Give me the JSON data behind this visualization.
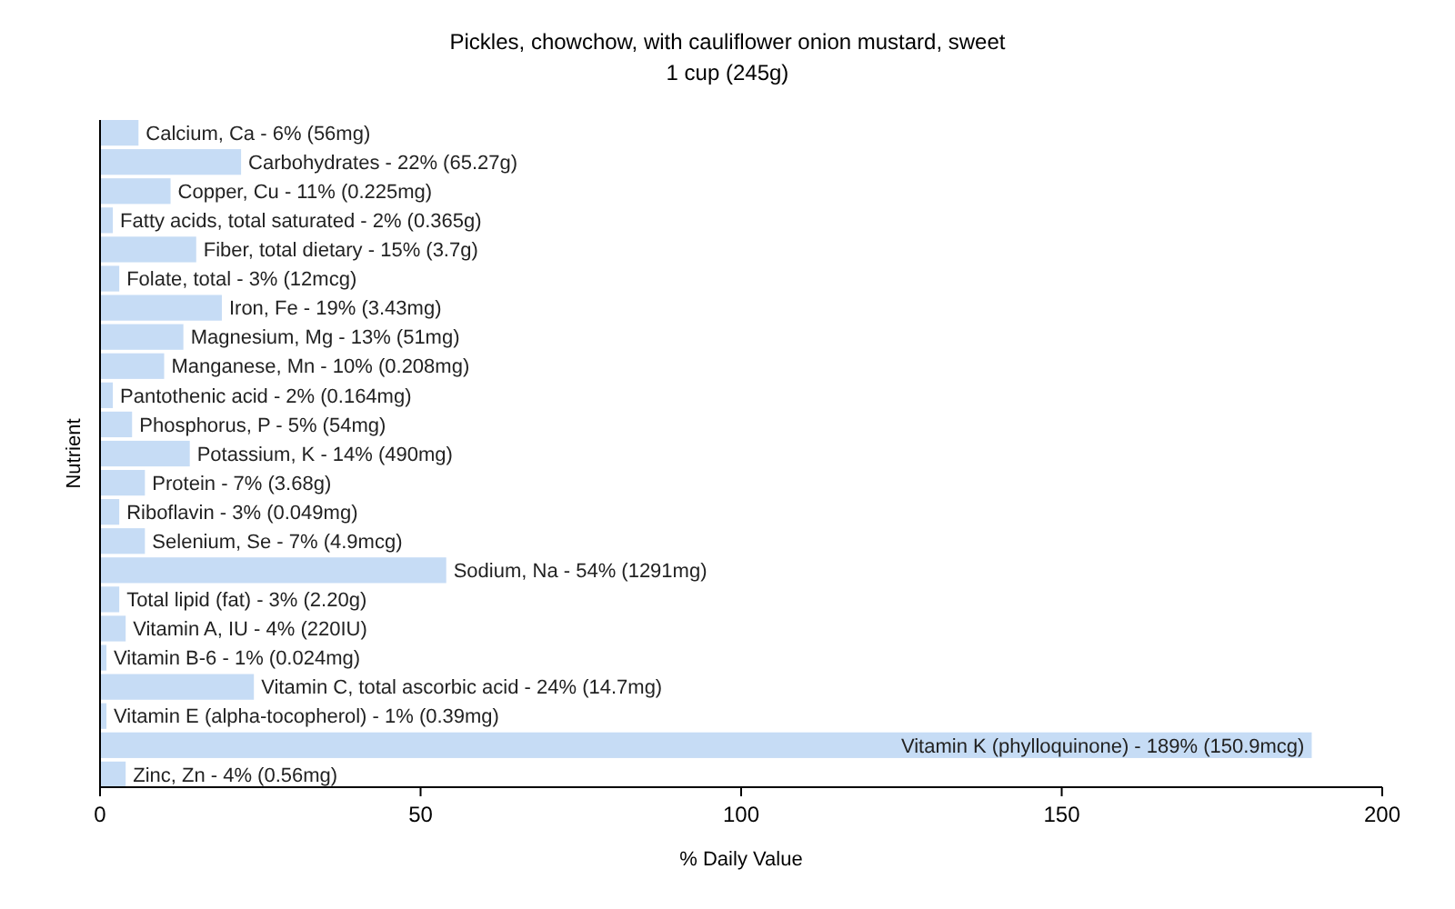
{
  "chart_data": {
    "type": "bar",
    "orientation": "horizontal",
    "title": "Pickles, chowchow, with cauliflower onion mustard, sweet",
    "subtitle": "1 cup (245g)",
    "xlabel": "% Daily Value",
    "ylabel": "Nutrient",
    "categories": [
      "Calcium, Ca - 6% (56mg)",
      "Carbohydrates - 22% (65.27g)",
      "Copper, Cu - 11% (0.225mg)",
      "Fatty acids, total saturated - 2% (0.365g)",
      "Fiber, total dietary - 15% (3.7g)",
      "Folate, total - 3% (12mcg)",
      "Iron, Fe - 19% (3.43mg)",
      "Magnesium, Mg - 13% (51mg)",
      "Manganese, Mn - 10% (0.208mg)",
      "Pantothenic acid - 2% (0.164mg)",
      "Phosphorus, P - 5% (54mg)",
      "Potassium, K - 14% (490mg)",
      "Protein - 7% (3.68g)",
      "Riboflavin - 3% (0.049mg)",
      "Selenium, Se - 7% (4.9mcg)",
      "Sodium, Na - 54% (1291mg)",
      "Total lipid (fat) - 3% (2.20g)",
      "Vitamin A, IU - 4% (220IU)",
      "Vitamin B-6 - 1% (0.024mg)",
      "Vitamin C, total ascorbic acid - 24% (14.7mg)",
      "Vitamin E (alpha-tocopherol) - 1% (0.39mg)",
      "Vitamin K (phylloquinone) - 189% (150.9mcg)",
      "Zinc, Zn - 4% (0.56mg)"
    ],
    "values": [
      6,
      22,
      11,
      2,
      15,
      3,
      19,
      13,
      10,
      2,
      5,
      14,
      7,
      3,
      7,
      54,
      3,
      4,
      1,
      24,
      1,
      189,
      4
    ],
    "color": "#c6dcf5",
    "xlim": [
      0,
      200
    ],
    "xticks": [
      0,
      50,
      100,
      150,
      200
    ],
    "grid": false
  }
}
